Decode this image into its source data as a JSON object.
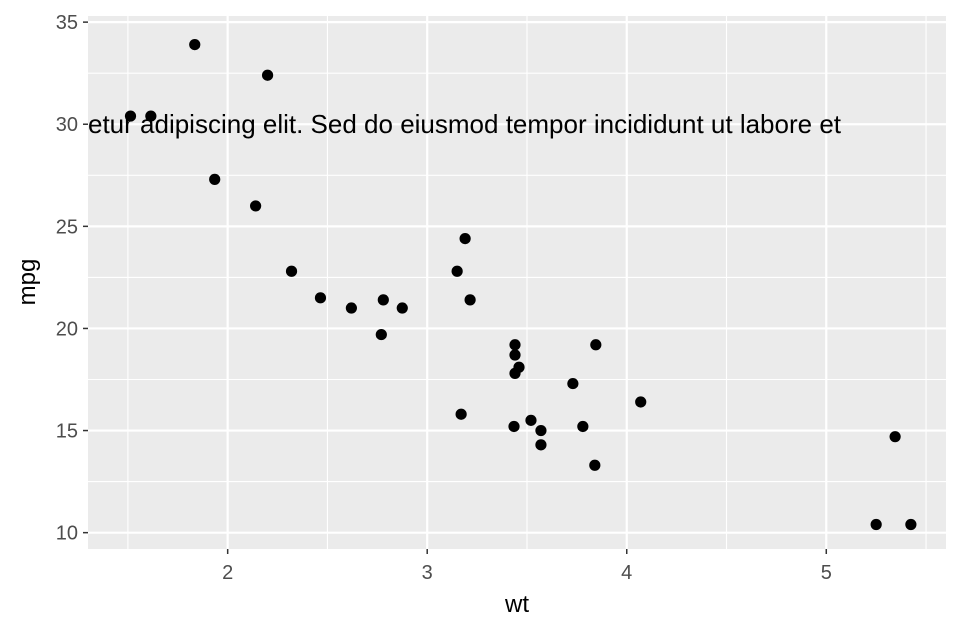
{
  "chart_data": {
    "type": "scatter",
    "title": "",
    "xlabel": "wt",
    "ylabel": "mpg",
    "xlim": [
      1.3,
      5.6
    ],
    "ylim": [
      9.2,
      35.3
    ],
    "x_ticks": [
      2,
      3,
      4,
      5
    ],
    "y_ticks": [
      10,
      15,
      20,
      25,
      30,
      35
    ],
    "grid": true,
    "legend": "none",
    "point_color": "#000000",
    "panel_color": "#ebebeb",
    "grid_color": "#ffffff",
    "annotation": {
      "text": "etur adipiscing elit. Sed do eiusmod tempor incididunt ut labore et",
      "y": 30
    },
    "points": [
      {
        "x": 1.513,
        "y": 30.4
      },
      {
        "x": 1.615,
        "y": 30.4
      },
      {
        "x": 1.835,
        "y": 33.9
      },
      {
        "x": 1.935,
        "y": 27.3
      },
      {
        "x": 2.14,
        "y": 26.0
      },
      {
        "x": 2.2,
        "y": 32.4
      },
      {
        "x": 2.32,
        "y": 22.8
      },
      {
        "x": 2.465,
        "y": 21.5
      },
      {
        "x": 2.62,
        "y": 21.0
      },
      {
        "x": 2.77,
        "y": 19.7
      },
      {
        "x": 2.78,
        "y": 21.4
      },
      {
        "x": 2.875,
        "y": 21.0
      },
      {
        "x": 3.15,
        "y": 22.8
      },
      {
        "x": 3.17,
        "y": 15.8
      },
      {
        "x": 3.19,
        "y": 24.4
      },
      {
        "x": 3.215,
        "y": 21.4
      },
      {
        "x": 3.435,
        "y": 15.2
      },
      {
        "x": 3.44,
        "y": 18.7
      },
      {
        "x": 3.44,
        "y": 17.8
      },
      {
        "x": 3.44,
        "y": 19.2
      },
      {
        "x": 3.46,
        "y": 18.1
      },
      {
        "x": 3.52,
        "y": 15.5
      },
      {
        "x": 3.57,
        "y": 14.3
      },
      {
        "x": 3.57,
        "y": 15.0
      },
      {
        "x": 3.73,
        "y": 17.3
      },
      {
        "x": 3.78,
        "y": 15.2
      },
      {
        "x": 3.84,
        "y": 13.3
      },
      {
        "x": 3.845,
        "y": 19.2
      },
      {
        "x": 4.07,
        "y": 16.4
      },
      {
        "x": 5.25,
        "y": 10.4
      },
      {
        "x": 5.345,
        "y": 14.7
      },
      {
        "x": 5.424,
        "y": 10.4
      }
    ]
  }
}
